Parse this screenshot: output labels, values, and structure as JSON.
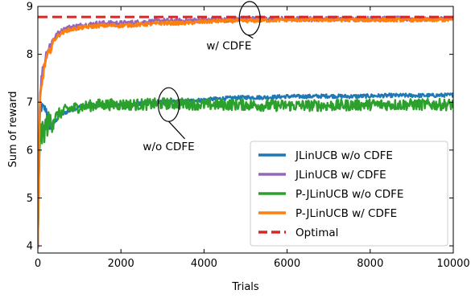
{
  "chart_data": {
    "type": "line",
    "xlabel": "Trials",
    "ylabel": "Sum of reward",
    "xlim": [
      0,
      10000
    ],
    "ylim": [
      3.85,
      9.0
    ],
    "xticks": [
      0,
      2000,
      4000,
      6000,
      8000,
      10000
    ],
    "yticks": [
      4,
      5,
      6,
      7,
      8,
      9
    ],
    "grid": false,
    "legend_position": "lower-right",
    "series": [
      {
        "name": "JLinUCB w/o CDFE",
        "color": "#1f77b4",
        "style": "solid",
        "x": [
          0,
          50,
          100,
          200,
          300,
          500,
          700,
          1000,
          1500,
          2000,
          2500,
          3000,
          3500,
          4000,
          4500,
          5000,
          5500,
          6000,
          6500,
          7000,
          7500,
          8000,
          8500,
          9000,
          9500,
          10000
        ],
        "y": [
          3.95,
          6.8,
          6.9,
          6.85,
          6.45,
          6.7,
          6.8,
          6.9,
          6.95,
          6.95,
          6.97,
          7.0,
          7.02,
          7.05,
          7.08,
          7.1,
          7.1,
          7.12,
          7.12,
          7.13,
          7.12,
          7.13,
          7.14,
          7.14,
          7.14,
          7.15
        ],
        "noise": 0.04
      },
      {
        "name": "JLinUCB w/ CDFE",
        "color": "#9467bd",
        "style": "solid",
        "x": [
          0,
          50,
          100,
          150,
          200,
          300,
          400,
          500,
          700,
          1000,
          1500,
          2000,
          2500,
          3000,
          3500,
          4000,
          4500,
          5000,
          5500,
          6000,
          7000,
          8000,
          9000,
          10000
        ],
        "y": [
          3.95,
          7.2,
          7.6,
          7.8,
          8.0,
          8.2,
          8.35,
          8.45,
          8.55,
          8.6,
          8.65,
          8.65,
          8.67,
          8.7,
          8.7,
          8.72,
          8.72,
          8.75,
          8.74,
          8.74,
          8.74,
          8.74,
          8.74,
          8.74
        ],
        "noise": 0.05
      },
      {
        "name": "P-JLinUCB w/o CDFE",
        "color": "#2ca02c",
        "style": "solid",
        "x": [
          0,
          50,
          100,
          200,
          300,
          500,
          700,
          1000,
          1500,
          2000,
          2500,
          3000,
          3500,
          4000,
          4500,
          5000,
          5500,
          6000,
          7000,
          8000,
          9000,
          10000
        ],
        "y": [
          3.95,
          6.4,
          6.3,
          6.5,
          6.6,
          6.75,
          6.85,
          6.9,
          6.95,
          6.95,
          6.95,
          6.97,
          6.97,
          6.95,
          6.95,
          6.95,
          6.93,
          6.93,
          6.93,
          6.95,
          6.95,
          6.95
        ],
        "noise": 0.12
      },
      {
        "name": "P-JLinUCB w/ CDFE",
        "color": "#ff7f0e",
        "style": "solid",
        "x": [
          0,
          50,
          100,
          150,
          200,
          300,
          400,
          500,
          700,
          1000,
          1500,
          2000,
          2500,
          3000,
          3500,
          4000,
          4500,
          5000,
          6000,
          7000,
          8000,
          9000,
          10000
        ],
        "y": [
          3.95,
          7.0,
          7.4,
          7.7,
          7.9,
          8.1,
          8.3,
          8.4,
          8.5,
          8.55,
          8.6,
          8.6,
          8.62,
          8.65,
          8.65,
          8.68,
          8.7,
          8.7,
          8.72,
          8.72,
          8.72,
          8.72,
          8.72
        ],
        "noise": 0.04
      },
      {
        "name": "Optimal",
        "color": "#d62728",
        "style": "dashed",
        "x": [
          0,
          10000
        ],
        "y": [
          8.78,
          8.78
        ],
        "noise": 0
      }
    ],
    "annotations": [
      {
        "text": "w/ CDFE",
        "x": 4600,
        "y": 8.1,
        "points_to": [
          5100,
          8.75
        ]
      },
      {
        "text": "w/o CDFE",
        "x": 3150,
        "y": 6.0,
        "points_to": [
          3150,
          6.95
        ]
      }
    ]
  }
}
